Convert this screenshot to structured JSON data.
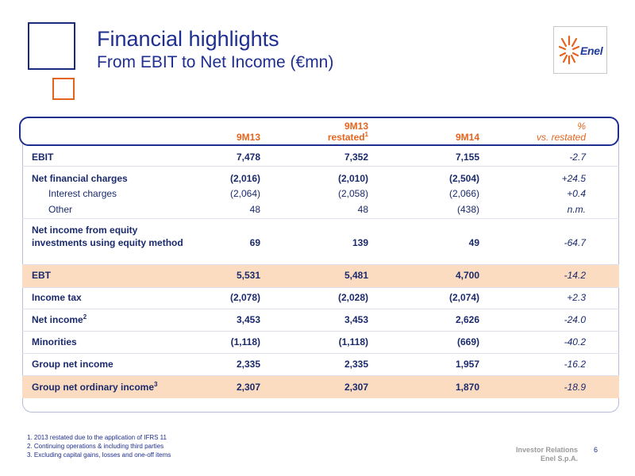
{
  "header": {
    "title": "Financial highlights",
    "subtitle": "From EBIT to Net Income (€mn)",
    "logo_text": "Enel"
  },
  "table": {
    "columns": {
      "col1": "9M13",
      "col2_line1": "9M13",
      "col2_line2": "restated",
      "col2_sup": "1",
      "col3": "9M14",
      "col4_line1": "%",
      "col4_line2": "vs. restated"
    },
    "rows": [
      {
        "label": "EBIT",
        "v1": "7,478",
        "v2": "7,352",
        "v3": "7,155",
        "pct": "-2.7"
      },
      {
        "label": "Net financial charges",
        "v1": "(2,016)",
        "v2": "(2,010)",
        "v3": "(2,504)",
        "pct": "+24.5"
      },
      {
        "label": "Interest charges",
        "v1": "(2,064)",
        "v2": "(2,058)",
        "v3": "(2,066)",
        "pct": "+0.4"
      },
      {
        "label": "Other",
        "v1": "48",
        "v2": "48",
        "v3": "(438)",
        "pct": "n.m."
      },
      {
        "label": "Net income from equity investments using equity method",
        "v1": "69",
        "v2": "139",
        "v3": "49",
        "pct": "-64.7"
      },
      {
        "label": "EBT",
        "v1": "5,531",
        "v2": "5,481",
        "v3": "4,700",
        "pct": "-14.2"
      },
      {
        "label": "Income tax",
        "v1": "(2,078)",
        "v2": "(2,028)",
        "v3": "(2,074)",
        "pct": "+2.3"
      },
      {
        "label": "Net income",
        "sup": "2",
        "v1": "3,453",
        "v2": "3,453",
        "v3": "2,626",
        "pct": "-24.0"
      },
      {
        "label": "Minorities",
        "v1": "(1,118)",
        "v2": "(1,118)",
        "v3": "(669)",
        "pct": "-40.2"
      },
      {
        "label": "Group net income",
        "v1": "2,335",
        "v2": "2,335",
        "v3": "1,957",
        "pct": "-16.2"
      },
      {
        "label": "Group net ordinary income",
        "sup": "3",
        "v1": "2,307",
        "v2": "2,307",
        "v3": "1,870",
        "pct": "-18.9"
      }
    ]
  },
  "footnotes": [
    "1. 2013 restated due to the application of IFRS 11",
    "2. Continuing operations & including third parties",
    "3. Excluding capital gains, losses and one-off items"
  ],
  "footer": {
    "dept": "Investor Relations",
    "company": "Enel S.p.A.",
    "page": "6"
  },
  "colors": {
    "brand_blue": "#1f2f8f",
    "accent_orange": "#e4641e",
    "highlight_band": "#fcdcc0"
  }
}
